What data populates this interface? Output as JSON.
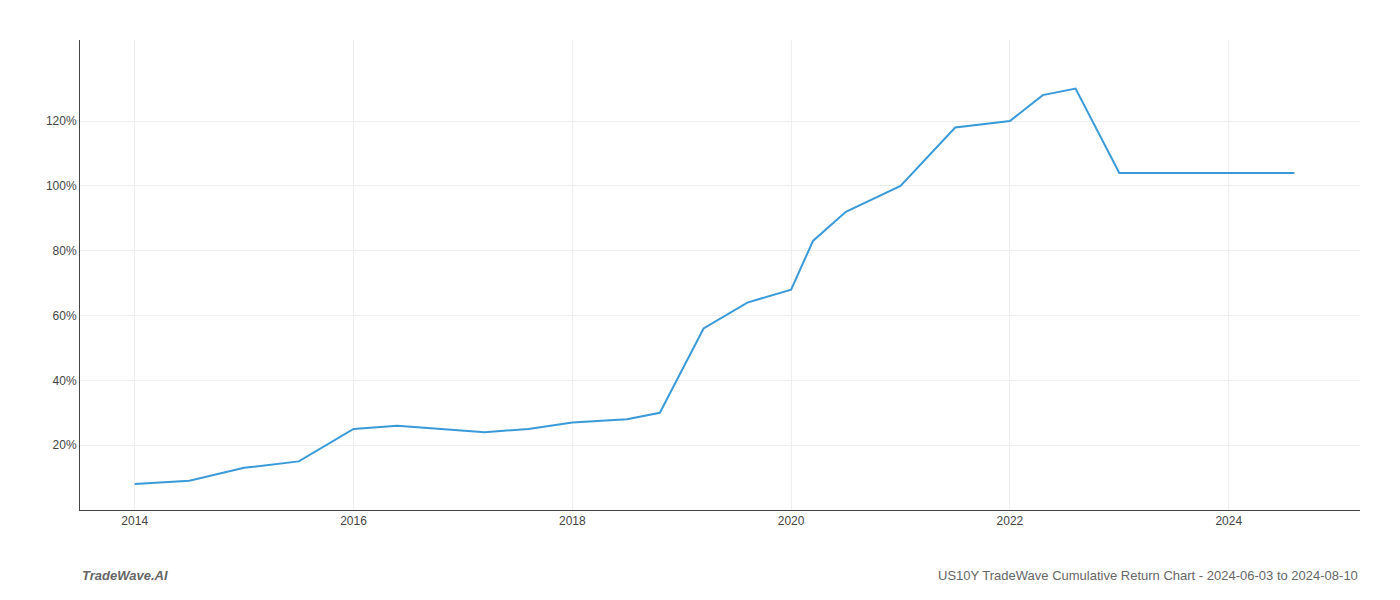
{
  "chart_data": {
    "type": "line",
    "x": [
      2014.0,
      2014.5,
      2015.0,
      2015.5,
      2016.0,
      2016.4,
      2016.8,
      2017.2,
      2017.6,
      2018.0,
      2018.5,
      2018.8,
      2019.2,
      2019.6,
      2020.0,
      2020.2,
      2020.5,
      2021.0,
      2021.5,
      2022.0,
      2022.3,
      2022.6,
      2023.0,
      2023.5,
      2024.0,
      2024.6
    ],
    "values": [
      8,
      9,
      13,
      15,
      25,
      26,
      25,
      24,
      25,
      27,
      28,
      30,
      56,
      64,
      68,
      83,
      92,
      100,
      118,
      120,
      128,
      130,
      104,
      104,
      104,
      104
    ],
    "color": "#3a9ad9",
    "xlim": [
      2013.5,
      2025.2
    ],
    "xticks": [
      2014,
      2016,
      2018,
      2020,
      2022,
      2024
    ],
    "ylim": [
      0,
      145
    ],
    "yticks": [
      {
        "value": 20,
        "label": "20%"
      },
      {
        "value": 40,
        "label": "40%"
      },
      {
        "value": 60,
        "label": "60%"
      },
      {
        "value": 80,
        "label": "80%"
      },
      {
        "value": 100,
        "label": "100%"
      },
      {
        "value": 120,
        "label": "120%"
      }
    ],
    "grid": true,
    "annotations": [
      "TradeWave.AI",
      "US10Y TradeWave Cumulative Return Chart - 2024-06-03 to 2024-08-10"
    ]
  }
}
